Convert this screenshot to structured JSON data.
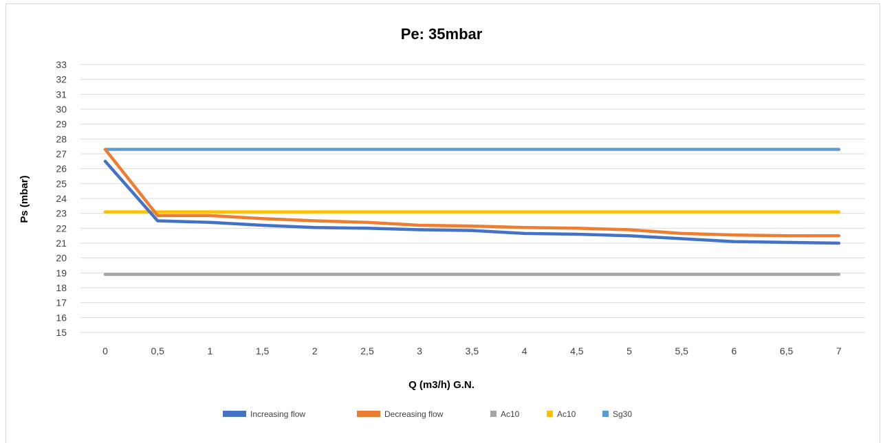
{
  "chart_data": {
    "type": "line",
    "title": "Pe: 35mbar",
    "xlabel": "Q (m3/h) G.N.",
    "ylabel": "Ps (mbar)",
    "categories": [
      "0",
      "0,5",
      "1",
      "1,5",
      "2",
      "2,5",
      "3",
      "3,5",
      "4",
      "4,5",
      "5",
      "5,5",
      "6",
      "6,5",
      "7"
    ],
    "ylim": [
      15,
      33
    ],
    "yticks": [
      "15",
      "16",
      "17",
      "18",
      "19",
      "20",
      "21",
      "22",
      "23",
      "24",
      "25",
      "26",
      "27",
      "28",
      "29",
      "30",
      "31",
      "32",
      "33"
    ],
    "grid": true,
    "legend_position": "bottom",
    "series": [
      {
        "name": "Increasing flow",
        "color": "#4472c4",
        "values": [
          26.5,
          22.5,
          22.4,
          22.2,
          22.05,
          22.0,
          21.9,
          21.85,
          21.65,
          21.6,
          21.5,
          21.3,
          21.1,
          21.05,
          21.0
        ]
      },
      {
        "name": "Decreasing  flow",
        "color": "#ed7d31",
        "values": [
          27.3,
          22.85,
          22.85,
          22.65,
          22.5,
          22.4,
          22.2,
          22.15,
          22.05,
          22.0,
          21.9,
          21.65,
          21.55,
          21.5,
          21.5
        ]
      },
      {
        "name": "Ac10",
        "color": "#a5a5a5",
        "values": [
          18.9,
          18.9,
          18.9,
          18.9,
          18.9,
          18.9,
          18.9,
          18.9,
          18.9,
          18.9,
          18.9,
          18.9,
          18.9,
          18.9,
          18.9
        ]
      },
      {
        "name": "Ac10",
        "color": "#ffc000",
        "values": [
          23.1,
          23.1,
          23.1,
          23.1,
          23.1,
          23.1,
          23.1,
          23.1,
          23.1,
          23.1,
          23.1,
          23.1,
          23.1,
          23.1,
          23.1
        ]
      },
      {
        "name": "Sg30",
        "color": "#5b9bd5",
        "values": [
          27.3,
          27.3,
          27.3,
          27.3,
          27.3,
          27.3,
          27.3,
          27.3,
          27.3,
          27.3,
          27.3,
          27.3,
          27.3,
          27.3,
          27.3
        ]
      }
    ]
  }
}
